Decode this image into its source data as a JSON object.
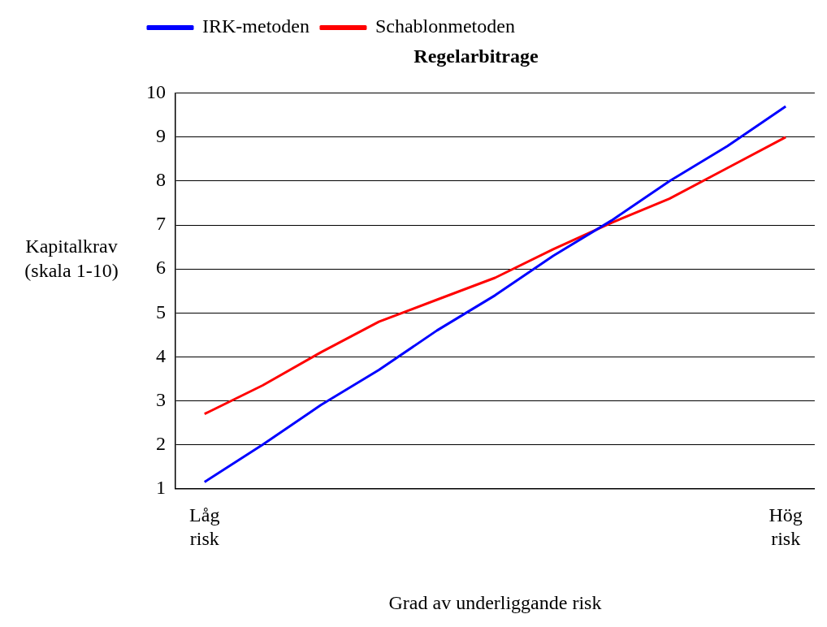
{
  "chart_data": {
    "type": "line",
    "title": "Regelarbitrage",
    "xlabel": "Grad av underliggande risk",
    "ylabel": "Kapitalkrav (skala 1-10)",
    "categories": [
      "Låg risk",
      null,
      null,
      null,
      null,
      null,
      null,
      null,
      null,
      null,
      "Hög risk"
    ],
    "ylim": [
      1,
      10
    ],
    "yticks": [
      1,
      2,
      3,
      4,
      5,
      6,
      7,
      8,
      9,
      10
    ],
    "grid": "y",
    "legend": "top left",
    "marker": "none",
    "line_style": "solid",
    "series": [
      {
        "name": "IRK-metoden",
        "color": "#0000ff",
        "values": [
          1.15,
          2.0,
          2.9,
          3.7,
          4.6,
          5.4,
          6.3,
          7.1,
          8.0,
          8.8,
          9.7
        ]
      },
      {
        "name": "Schablonmetoden",
        "color": "#ff0000",
        "values": [
          2.7,
          3.35,
          4.1,
          4.8,
          5.3,
          5.8,
          6.45,
          7.05,
          7.6,
          8.3,
          9.0
        ]
      }
    ]
  }
}
